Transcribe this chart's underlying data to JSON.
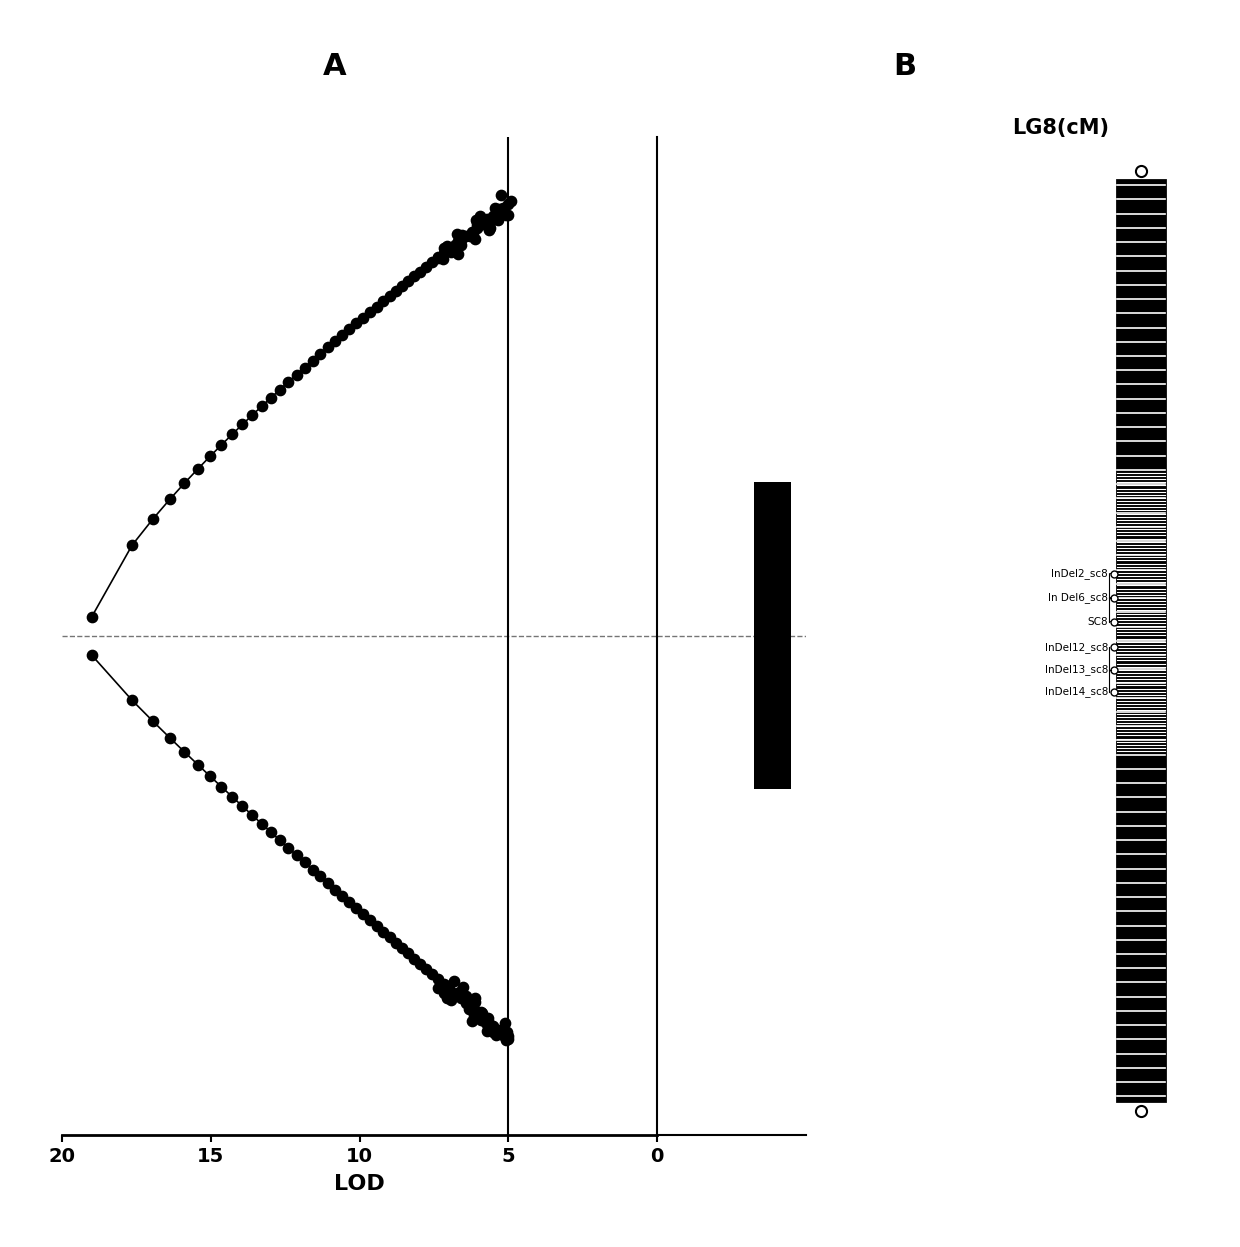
{
  "title_A": "A",
  "title_B": "B",
  "subtitle_B": "LG8(cM)",
  "xlabel": "LOD",
  "marker_labels_upper": [
    "InDel2_sc8",
    "In Del6_sc8",
    "SC8"
  ],
  "marker_labels_lower": [
    "InDel12_sc8",
    "InDel13_sc8",
    "InDel14_sc8"
  ],
  "bg_color": "#ffffff",
  "line_color": "#000000",
  "marker_color": "#000000"
}
